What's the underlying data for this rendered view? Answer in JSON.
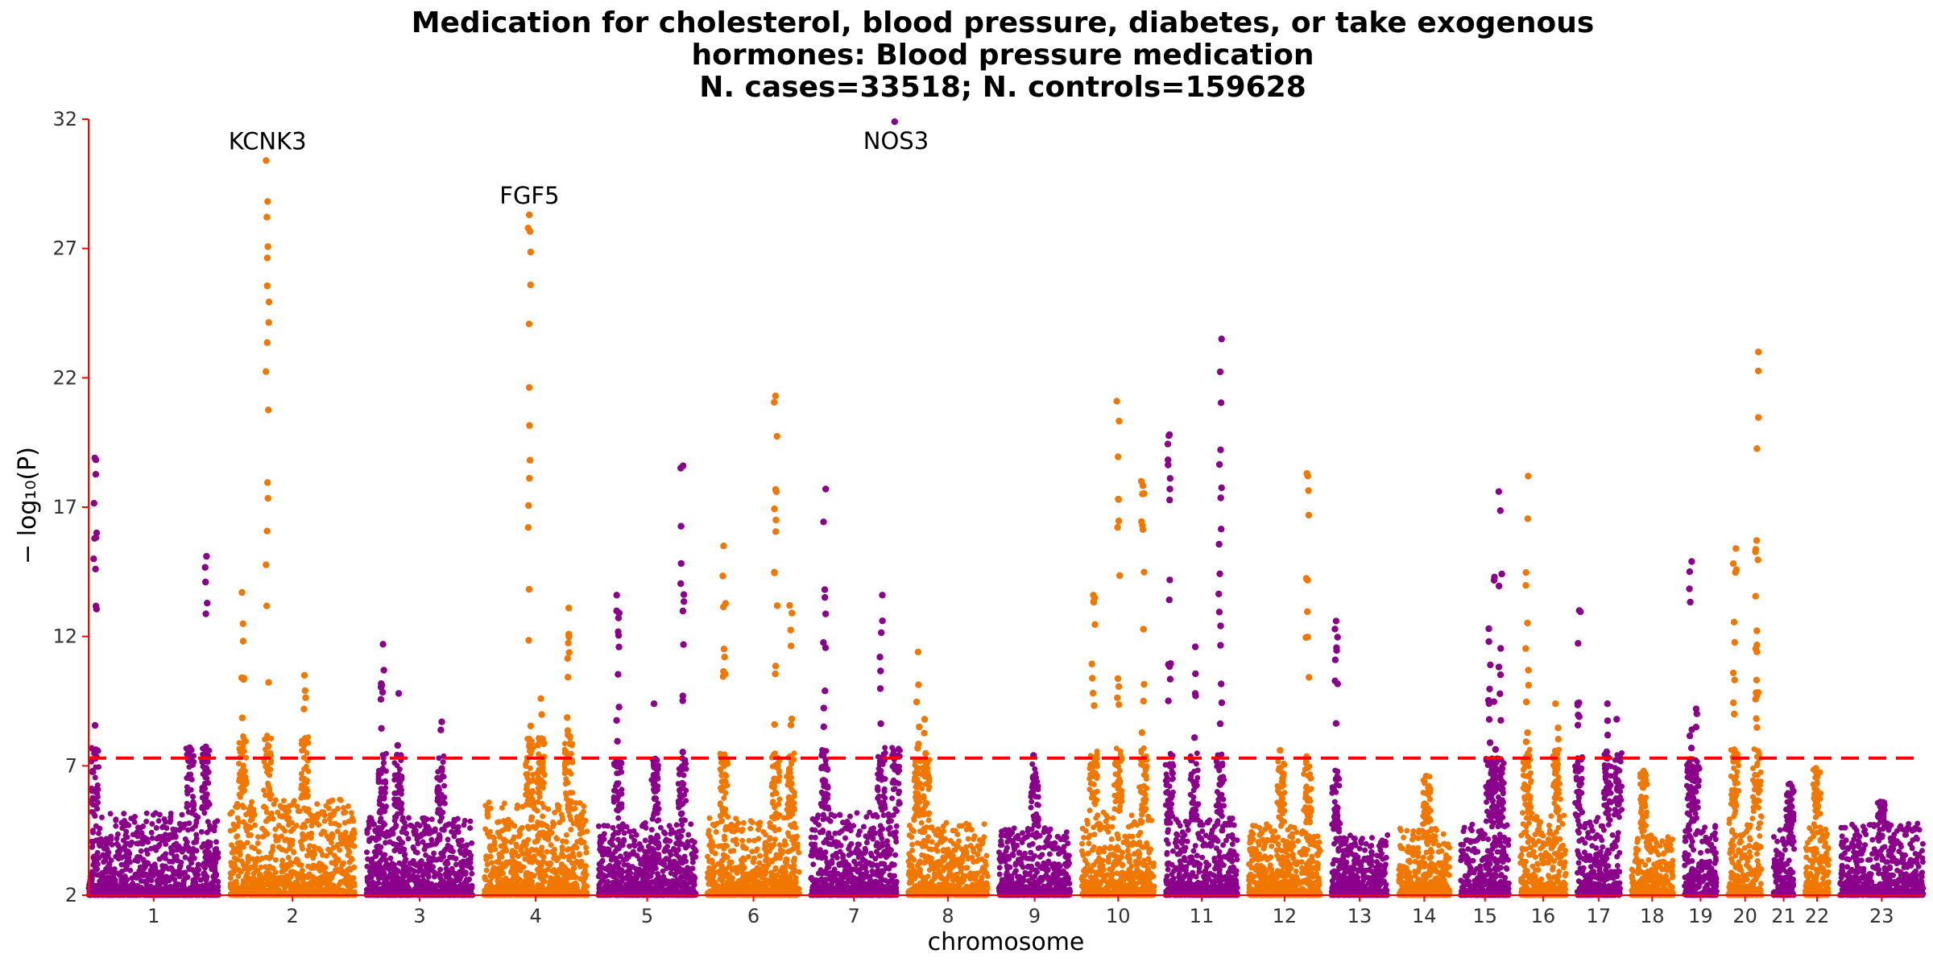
{
  "chart_data": {
    "type": "scatter",
    "title_lines": [
      "Medication for cholesterol, blood pressure, diabetes, or take exogenous",
      "hormones: Blood pressure medication",
      "N. cases=33518; N. controls=159628"
    ],
    "xlabel": "chromosome",
    "ylabel": "− log₁₀(P)",
    "ylim": [
      2,
      32
    ],
    "yticks": [
      2,
      7,
      12,
      17,
      22,
      27,
      32
    ],
    "significance_threshold": 7.3,
    "colors": {
      "odd": "#8b008b",
      "even": "#f07800",
      "threshold": "#ff0000",
      "axis": "#ff0000"
    },
    "chromosomes": [
      {
        "label": "1",
        "base_max": 5.2,
        "peaks": [
          [
            0.05,
            18.9,
            12
          ],
          [
            0.9,
            15.1,
            10
          ],
          [
            0.78,
            7.7,
            4
          ]
        ]
      },
      {
        "label": "2",
        "base_max": 5.7,
        "peaks": [
          [
            0.1,
            13.7,
            10
          ],
          [
            0.3,
            30.4,
            18
          ],
          [
            0.6,
            10.5,
            6
          ]
        ]
      },
      {
        "label": "3",
        "base_max": 5.0,
        "peaks": [
          [
            0.15,
            11.7,
            8
          ],
          [
            0.7,
            8.7,
            5
          ],
          [
            0.3,
            9.8,
            4
          ]
        ]
      },
      {
        "label": "4",
        "base_max": 5.6,
        "peaks": [
          [
            0.44,
            28.3,
            16
          ],
          [
            0.82,
            13.1,
            12
          ],
          [
            0.55,
            9.6,
            4
          ]
        ]
      },
      {
        "label": "5",
        "base_max": 4.8,
        "peaks": [
          [
            0.2,
            13.6,
            12
          ],
          [
            0.86,
            18.6,
            14
          ],
          [
            0.58,
            9.4,
            6
          ]
        ]
      },
      {
        "label": "6",
        "base_max": 5.0,
        "peaks": [
          [
            0.18,
            15.5,
            12
          ],
          [
            0.74,
            21.3,
            18
          ],
          [
            0.9,
            13.2,
            8
          ]
        ]
      },
      {
        "label": "7",
        "base_max": 5.2,
        "peaks": [
          [
            0.16,
            17.7,
            14
          ],
          [
            0.82,
            13.6,
            10
          ],
          [
            0.99,
            31.9,
            1
          ]
        ]
      },
      {
        "label": "8",
        "base_max": 4.8,
        "peaks": [
          [
            0.12,
            11.4,
            10
          ],
          [
            0.22,
            8.8,
            6
          ]
        ]
      },
      {
        "label": "9",
        "base_max": 4.6,
        "peaks": [
          [
            0.5,
            7.4,
            3
          ]
        ]
      },
      {
        "label": "10",
        "base_max": 5.2,
        "peaks": [
          [
            0.16,
            13.6,
            10
          ],
          [
            0.5,
            21.1,
            16
          ],
          [
            0.84,
            18.0,
            12
          ]
        ]
      },
      {
        "label": "11",
        "base_max": 5.0,
        "peaks": [
          [
            0.05,
            19.8,
            16
          ],
          [
            0.76,
            23.5,
            18
          ],
          [
            0.4,
            11.6,
            6
          ]
        ]
      },
      {
        "label": "12",
        "base_max": 4.8,
        "peaks": [
          [
            0.82,
            18.3,
            14
          ],
          [
            0.45,
            7.6,
            4
          ]
        ]
      },
      {
        "label": "13",
        "base_max": 4.4,
        "peaks": [
          [
            0.08,
            12.6,
            12
          ]
        ]
      },
      {
        "label": "14",
        "base_max": 4.6,
        "peaks": [
          [
            0.55,
            6.6,
            4
          ]
        ]
      },
      {
        "label": "15",
        "base_max": 4.8,
        "peaks": [
          [
            0.6,
            12.3,
            12
          ],
          [
            0.82,
            17.6,
            12
          ],
          [
            0.7,
            14.3,
            6
          ]
        ]
      },
      {
        "label": "16",
        "base_max": 5.2,
        "peaks": [
          [
            0.15,
            18.2,
            14
          ],
          [
            0.8,
            9.4,
            6
          ]
        ]
      },
      {
        "label": "17",
        "base_max": 5.0,
        "peaks": [
          [
            0.04,
            13.0,
            12
          ],
          [
            0.7,
            9.4,
            6
          ],
          [
            0.95,
            8.8,
            4
          ]
        ]
      },
      {
        "label": "18",
        "base_max": 4.4,
        "peaks": [
          [
            0.3,
            6.8,
            3
          ]
        ]
      },
      {
        "label": "19",
        "base_max": 4.8,
        "peaks": [
          [
            0.2,
            14.9,
            8
          ],
          [
            0.35,
            9.2,
            4
          ]
        ]
      },
      {
        "label": "20",
        "base_max": 5.2,
        "peaks": [
          [
            0.2,
            15.4,
            14
          ],
          [
            0.85,
            23.0,
            20
          ]
        ]
      },
      {
        "label": "21",
        "base_max": 4.6,
        "peaks": [
          [
            0.8,
            6.3,
            3
          ]
        ]
      },
      {
        "label": "22",
        "base_max": 4.6,
        "peaks": [
          [
            0.5,
            6.9,
            4
          ]
        ]
      },
      {
        "label": "23",
        "base_max": 4.8,
        "peaks": [
          [
            0.5,
            5.6,
            4
          ]
        ]
      }
    ],
    "gene_labels": [
      {
        "text": "KCNK3",
        "chrom": "2",
        "pos": 0.3,
        "y": 30.4
      },
      {
        "text": "FGF5",
        "chrom": "4",
        "pos": 0.44,
        "y": 28.3
      },
      {
        "text": "NOS3",
        "chrom": "7",
        "pos": 0.99,
        "y": 31.9
      }
    ]
  }
}
